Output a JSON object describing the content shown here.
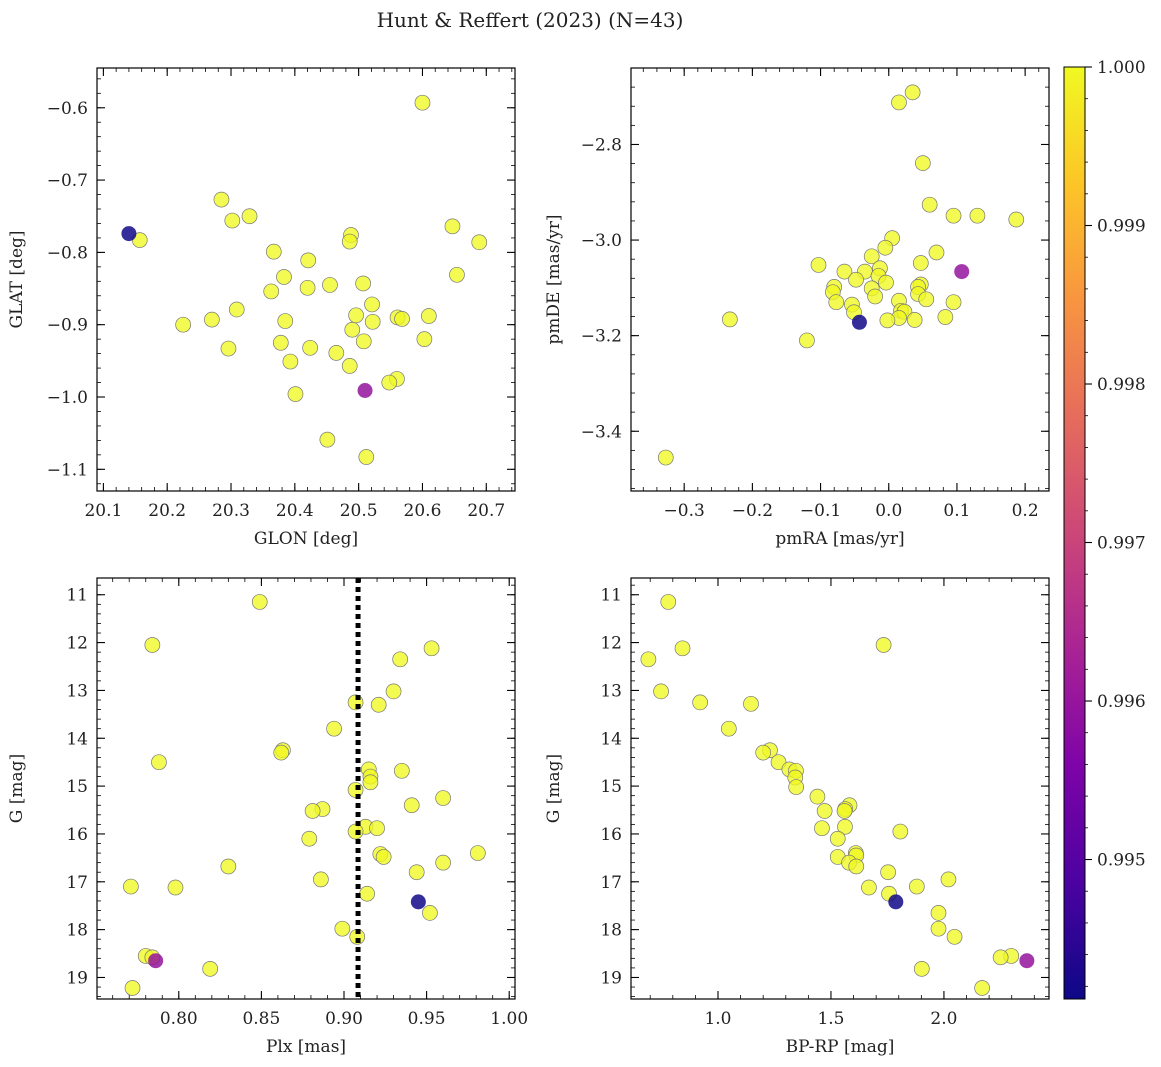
{
  "figure": {
    "title": "Hunt & Reffert (2023) (N=43)"
  },
  "colorbar": {
    "cmap": "plasma",
    "min": 0.99412,
    "max": 1.0,
    "ticks": [
      0.995,
      0.996,
      0.997,
      0.998,
      0.999,
      1.0
    ],
    "tick_labels": [
      "0.995",
      "0.996",
      "0.997",
      "0.998",
      "0.999",
      "1.000"
    ]
  },
  "chart_data": [
    {
      "type": "scatter",
      "id": "sky",
      "xlabel": "GLON [deg]",
      "ylabel": "GLAT [deg]",
      "xlim": [
        20.09,
        20.745
      ],
      "ylim": [
        -1.13,
        -0.545
      ],
      "y_inverted": false,
      "xticks": [
        20.1,
        20.2,
        20.3,
        20.4,
        20.5,
        20.6,
        20.7
      ],
      "xtick_labels": [
        "20.1",
        "20.2",
        "20.3",
        "20.4",
        "20.5",
        "20.6",
        "20.7"
      ],
      "yticks": [
        -0.6,
        -0.7,
        -0.8,
        -0.9,
        -1.0,
        -1.1
      ],
      "ytick_labels": [
        "−0.6",
        "−0.7",
        "−0.8",
        "−0.9",
        "−1.0",
        "−1.1"
      ],
      "x_minor_step": 0.02,
      "y_minor_step": 0.02,
      "points": [
        [
          20.6,
          -0.593,
          1.0
        ],
        [
          20.285,
          -0.727,
          1.0
        ],
        [
          20.329,
          -0.75,
          1.0
        ],
        [
          20.302,
          -0.756,
          1.0
        ],
        [
          20.647,
          -0.764,
          1.0
        ],
        [
          20.14,
          -0.774,
          0.99415
        ],
        [
          20.157,
          -0.783,
          1.0
        ],
        [
          20.488,
          -0.776,
          1.0
        ],
        [
          20.486,
          -0.785,
          1.0
        ],
        [
          20.689,
          -0.786,
          1.0
        ],
        [
          20.367,
          -0.799,
          1.0
        ],
        [
          20.421,
          -0.811,
          1.0
        ],
        [
          20.654,
          -0.831,
          1.0
        ],
        [
          20.383,
          -0.834,
          1.0
        ],
        [
          20.455,
          -0.845,
          1.0
        ],
        [
          20.507,
          -0.843,
          1.0
        ],
        [
          20.42,
          -0.849,
          1.0
        ],
        [
          20.363,
          -0.854,
          1.0
        ],
        [
          20.521,
          -0.872,
          1.0
        ],
        [
          20.309,
          -0.879,
          1.0
        ],
        [
          20.61,
          -0.888,
          1.0
        ],
        [
          20.496,
          -0.887,
          1.0
        ],
        [
          20.561,
          -0.89,
          1.0
        ],
        [
          20.568,
          -0.892,
          1.0
        ],
        [
          20.27,
          -0.893,
          1.0
        ],
        [
          20.385,
          -0.895,
          1.0
        ],
        [
          20.522,
          -0.896,
          1.0
        ],
        [
          20.225,
          -0.9,
          1.0
        ],
        [
          20.49,
          -0.907,
          1.0
        ],
        [
          20.603,
          -0.92,
          1.0
        ],
        [
          20.508,
          -0.923,
          1.0
        ],
        [
          20.378,
          -0.925,
          1.0
        ],
        [
          20.296,
          -0.933,
          1.0
        ],
        [
          20.424,
          -0.932,
          1.0
        ],
        [
          20.465,
          -0.939,
          1.0
        ],
        [
          20.393,
          -0.951,
          1.0
        ],
        [
          20.486,
          -0.957,
          1.0
        ],
        [
          20.56,
          -0.975,
          1.0
        ],
        [
          20.548,
          -0.98,
          1.0
        ],
        [
          20.51,
          -0.991,
          0.99596
        ],
        [
          20.401,
          -0.996,
          1.0
        ],
        [
          20.451,
          -1.059,
          1.0
        ],
        [
          20.512,
          -1.083,
          1.0
        ]
      ]
    },
    {
      "type": "scatter",
      "id": "pm",
      "xlabel": "pmRA [mas/yr]",
      "ylabel": "pmDE [mas/yr]",
      "xlim": [
        -0.378,
        0.235
      ],
      "ylim": [
        -3.525,
        -2.64
      ],
      "y_inverted": false,
      "xticks": [
        -0.3,
        -0.2,
        -0.1,
        0.0,
        0.1,
        0.2
      ],
      "xtick_labels": [
        "−0.3",
        "−0.2",
        "−0.1",
        "0.0",
        "0.1",
        "0.2"
      ],
      "yticks": [
        -2.8,
        -3.0,
        -3.2,
        -3.4
      ],
      "ytick_labels": [
        "−2.8",
        "−3.0",
        "−3.2",
        "−3.4"
      ],
      "x_minor_step": 0.02,
      "y_minor_step": 0.04,
      "points": [
        [
          0.035,
          -2.691,
          1.0
        ],
        [
          0.015,
          -2.712,
          1.0
        ],
        [
          0.05,
          -2.839,
          1.0
        ],
        [
          0.06,
          -2.926,
          1.0
        ],
        [
          0.095,
          -2.949,
          1.0
        ],
        [
          0.13,
          -2.949,
          1.0
        ],
        [
          0.187,
          -2.957,
          1.0
        ],
        [
          0.005,
          -2.996,
          1.0
        ],
        [
          -0.005,
          -3.016,
          1.0
        ],
        [
          0.07,
          -3.026,
          1.0
        ],
        [
          -0.025,
          -3.034,
          1.0
        ],
        [
          -0.103,
          -3.052,
          1.0
        ],
        [
          0.047,
          -3.048,
          1.0
        ],
        [
          -0.013,
          -3.059,
          1.0
        ],
        [
          -0.035,
          -3.066,
          1.0
        ],
        [
          -0.065,
          -3.066,
          1.0
        ],
        [
          -0.015,
          -3.075,
          1.0
        ],
        [
          0.107,
          -3.066,
          0.99597
        ],
        [
          -0.048,
          -3.083,
          1.0
        ],
        [
          -0.004,
          -3.089,
          1.0
        ],
        [
          0.047,
          -3.093,
          1.0
        ],
        [
          -0.08,
          -3.098,
          1.0
        ],
        [
          0.043,
          -3.098,
          1.0
        ],
        [
          -0.025,
          -3.101,
          1.0
        ],
        [
          -0.082,
          -3.109,
          1.0
        ],
        [
          -0.02,
          -3.118,
          1.0
        ],
        [
          0.043,
          -3.113,
          1.0
        ],
        [
          0.015,
          -3.127,
          1.0
        ],
        [
          0.055,
          -3.124,
          1.0
        ],
        [
          -0.077,
          -3.13,
          1.0
        ],
        [
          -0.054,
          -3.135,
          1.0
        ],
        [
          0.018,
          -3.148,
          1.0
        ],
        [
          -0.051,
          -3.151,
          1.0
        ],
        [
          0.023,
          -3.15,
          1.0
        ],
        [
          0.083,
          -3.161,
          1.0
        ],
        [
          0.015,
          -3.163,
          1.0
        ],
        [
          -0.233,
          -3.166,
          1.0
        ],
        [
          0.038,
          -3.167,
          1.0
        ],
        [
          -0.002,
          -3.168,
          1.0
        ],
        [
          -0.043,
          -3.172,
          0.99415
        ],
        [
          -0.12,
          -3.21,
          1.0
        ],
        [
          -0.327,
          -3.455,
          1.0
        ],
        [
          0.095,
          -3.13,
          1.0
        ]
      ]
    },
    {
      "type": "scatter",
      "id": "plx_g",
      "xlabel": "Plx [mas]",
      "ylabel": "G [mag]",
      "xlim": [
        0.7505,
        1.0035
      ],
      "ylim": [
        10.65,
        19.45
      ],
      "y_inverted": true,
      "xticks": [
        0.8,
        0.85,
        0.9,
        0.95,
        1.0
      ],
      "xtick_labels": [
        "0.80",
        "0.85",
        "0.90",
        "0.95",
        "1.00"
      ],
      "yticks": [
        11,
        12,
        13,
        14,
        15,
        16,
        17,
        18,
        19
      ],
      "ytick_labels": [
        "11",
        "12",
        "13",
        "14",
        "15",
        "16",
        "17",
        "18",
        "19"
      ],
      "x_minor_step": 0.01,
      "y_minor_step": 0.2,
      "vline": {
        "x": 0.9085,
        "style": "dotted",
        "color": "#000000"
      },
      "points": [
        [
          0.849,
          11.15,
          1.0
        ],
        [
          0.784,
          12.05,
          1.0
        ],
        [
          0.953,
          12.12,
          1.0
        ],
        [
          0.934,
          12.35,
          1.0
        ],
        [
          0.93,
          13.02,
          1.0
        ],
        [
          0.907,
          13.25,
          1.0
        ],
        [
          0.921,
          13.3,
          1.0
        ],
        [
          0.894,
          13.8,
          1.0
        ],
        [
          0.863,
          14.25,
          1.0
        ],
        [
          0.862,
          14.3,
          1.0
        ],
        [
          0.788,
          14.5,
          1.0
        ],
        [
          0.915,
          14.65,
          1.0
        ],
        [
          0.935,
          14.68,
          1.0
        ],
        [
          0.916,
          14.8,
          1.0
        ],
        [
          0.916,
          14.92,
          1.0
        ],
        [
          0.907,
          15.08,
          1.0
        ],
        [
          0.96,
          15.25,
          1.0
        ],
        [
          0.941,
          15.4,
          1.0
        ],
        [
          0.887,
          15.48,
          1.0
        ],
        [
          0.881,
          15.52,
          1.0
        ],
        [
          0.913,
          15.85,
          1.0
        ],
        [
          0.92,
          15.88,
          1.0
        ],
        [
          0.907,
          15.95,
          1.0
        ],
        [
          0.879,
          16.1,
          1.0
        ],
        [
          0.981,
          16.4,
          1.0
        ],
        [
          0.922,
          16.42,
          1.0
        ],
        [
          0.924,
          16.48,
          1.0
        ],
        [
          0.96,
          16.6,
          1.0
        ],
        [
          0.83,
          16.68,
          1.0
        ],
        [
          0.944,
          16.8,
          1.0
        ],
        [
          0.886,
          16.95,
          1.0
        ],
        [
          0.771,
          17.1,
          1.0
        ],
        [
          0.798,
          17.12,
          1.0
        ],
        [
          0.914,
          17.25,
          1.0
        ],
        [
          0.945,
          17.42,
          0.99415
        ],
        [
          0.952,
          17.65,
          1.0
        ],
        [
          0.899,
          17.98,
          1.0
        ],
        [
          0.908,
          18.15,
          1.0
        ],
        [
          0.78,
          18.55,
          1.0
        ],
        [
          0.784,
          18.58,
          1.0
        ],
        [
          0.786,
          18.65,
          0.99596
        ],
        [
          0.819,
          18.82,
          1.0
        ],
        [
          0.772,
          19.22,
          1.0
        ]
      ]
    },
    {
      "type": "scatter",
      "id": "cmd",
      "xlabel": "BP-RP [mag]",
      "ylabel": "G [mag]",
      "xlim": [
        0.615,
        2.465
      ],
      "ylim": [
        10.65,
        19.45
      ],
      "y_inverted": true,
      "xticks": [
        1.0,
        1.5,
        2.0
      ],
      "xtick_labels": [
        "1.0",
        "1.5",
        "2.0"
      ],
      "yticks": [
        11,
        12,
        13,
        14,
        15,
        16,
        17,
        18,
        19
      ],
      "ytick_labels": [
        "11",
        "12",
        "13",
        "14",
        "15",
        "16",
        "17",
        "18",
        "19"
      ],
      "x_minor_step": 0.1,
      "y_minor_step": 0.2,
      "points": [
        [
          0.78,
          11.15,
          1.0
        ],
        [
          0.692,
          12.35,
          1.0
        ],
        [
          0.843,
          12.12,
          1.0
        ],
        [
          1.733,
          12.05,
          1.0
        ],
        [
          0.748,
          13.02,
          1.0
        ],
        [
          0.921,
          13.25,
          1.0
        ],
        [
          1.146,
          13.28,
          1.0
        ],
        [
          1.048,
          13.8,
          1.0
        ],
        [
          1.23,
          14.25,
          1.0
        ],
        [
          1.2,
          14.3,
          1.0
        ],
        [
          1.268,
          14.5,
          1.0
        ],
        [
          1.316,
          14.65,
          1.0
        ],
        [
          1.345,
          14.68,
          1.0
        ],
        [
          1.342,
          14.82,
          1.0
        ],
        [
          1.346,
          15.02,
          1.0
        ],
        [
          1.44,
          15.22,
          1.0
        ],
        [
          1.582,
          15.4,
          1.0
        ],
        [
          1.563,
          15.48,
          1.0
        ],
        [
          1.472,
          15.52,
          1.0
        ],
        [
          1.46,
          15.88,
          1.0
        ],
        [
          1.562,
          15.85,
          1.0
        ],
        [
          1.807,
          15.95,
          1.0
        ],
        [
          1.53,
          16.1,
          1.0
        ],
        [
          1.61,
          16.4,
          1.0
        ],
        [
          1.612,
          16.45,
          1.0
        ],
        [
          1.53,
          16.48,
          1.0
        ],
        [
          1.58,
          16.6,
          1.0
        ],
        [
          1.612,
          16.68,
          1.0
        ],
        [
          1.753,
          16.8,
          1.0
        ],
        [
          2.02,
          16.95,
          1.0
        ],
        [
          1.668,
          17.12,
          1.0
        ],
        [
          1.88,
          17.1,
          1.0
        ],
        [
          1.757,
          17.25,
          1.0
        ],
        [
          1.787,
          17.42,
          0.99415
        ],
        [
          1.976,
          17.65,
          1.0
        ],
        [
          1.976,
          17.98,
          1.0
        ],
        [
          2.047,
          18.15,
          1.0
        ],
        [
          2.298,
          18.55,
          1.0
        ],
        [
          2.251,
          18.58,
          1.0
        ],
        [
          2.367,
          18.65,
          0.99596
        ],
        [
          1.902,
          18.82,
          1.0
        ],
        [
          2.169,
          19.22,
          1.0
        ],
        [
          1.56,
          15.52,
          1.0
        ]
      ]
    }
  ]
}
